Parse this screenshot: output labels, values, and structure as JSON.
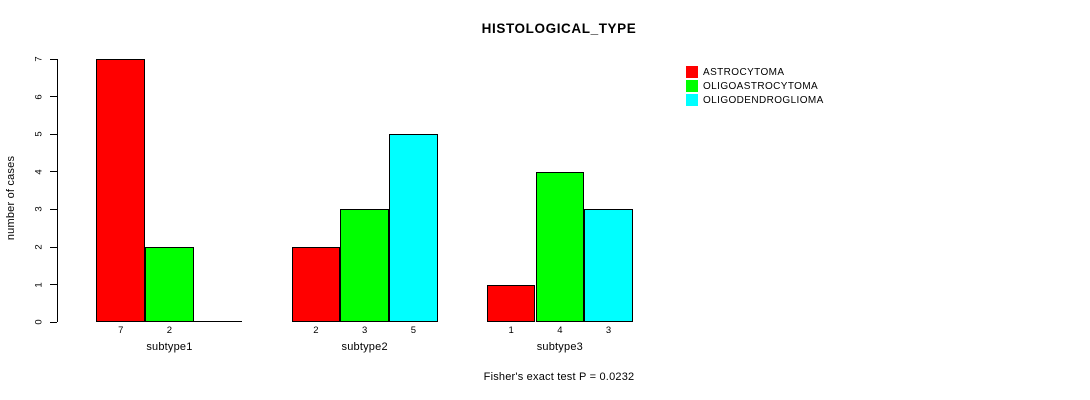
{
  "page": {
    "background_color": "#ffffff",
    "text_color": "#000000"
  },
  "chart_data": {
    "type": "bar",
    "title": "HISTOLOGICAL_TYPE",
    "ylabel": "number of cases",
    "xlabel": "",
    "caption": "Fisher's exact test P = 0.0232",
    "categories": [
      "subtype1",
      "subtype2",
      "subtype3"
    ],
    "series": [
      {
        "name": "ASTROCYTOMA",
        "color": "#FF0000",
        "values": [
          7,
          2,
          1
        ]
      },
      {
        "name": "OLIGOASTROCYTOMA",
        "color": "#00FF00",
        "values": [
          2,
          3,
          4
        ]
      },
      {
        "name": "OLIGODENDROGLIOMA",
        "color": "#00FFFF",
        "values": [
          0,
          5,
          3
        ]
      }
    ],
    "bar_value_labels_shown_only_when_positive": true,
    "ylim": [
      0,
      7
    ],
    "yticks": [
      0,
      1,
      2,
      3,
      4,
      5,
      6,
      7
    ],
    "grid": false,
    "legend_position": "right-outside",
    "bar_border_color": "#000000"
  }
}
